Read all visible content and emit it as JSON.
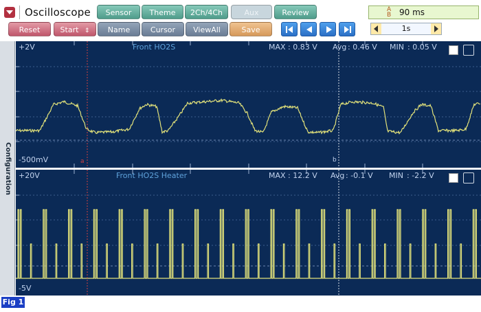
{
  "app": {
    "title": "Oscilloscope",
    "menu_icon": "dropdown-arrow-icon"
  },
  "toolbar": {
    "top_buttons": [
      "Sensor",
      "Theme",
      "2Ch/4Ch",
      "Aux",
      "Review"
    ],
    "second_buttons": {
      "reset": "Reset",
      "start": "Start",
      "name": "Name",
      "cursor": "Cursor",
      "viewall": "ViewAll",
      "save": "Save"
    },
    "nav_icons": [
      "skip-to-start-icon",
      "step-back-icon",
      "step-forward-icon",
      "skip-to-end-icon"
    ],
    "sample_rate": "90 ms",
    "time_scale": "1s"
  },
  "sidebar": {
    "label": "Configuration"
  },
  "channels": [
    {
      "name": "Front HO2S",
      "top_label": "+2V",
      "bottom_label": "-500mV",
      "max_label": "MAX",
      "max_value": ": 0.83 V",
      "avg_label": "Avg",
      "avg_value": ": 0.46 V",
      "min_label": "MIN",
      "min_value": ": 0.05 V",
      "cursor_a": "a",
      "cursor_b": "b",
      "trace_color": "#e2e27a"
    },
    {
      "name": "Front HO2S Heater",
      "top_label": "+20V",
      "bottom_label": "-5V",
      "max_label": "MAX",
      "max_value": ": 12.2 V",
      "avg_label": "Avg",
      "avg_value": ": -0.1 V",
      "min_label": "MIN",
      "min_value": ": -2.2 V",
      "trace_color": "#e2e27a"
    }
  ],
  "figure_tag": "Fig 1"
}
